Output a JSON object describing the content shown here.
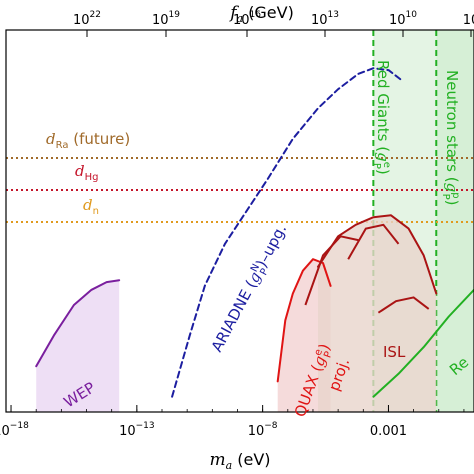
{
  "chart_data": {
    "type": "line",
    "x_axis": {
      "label_var": "m",
      "label_sub": "a",
      "label_unit": "(eV)",
      "scale": "log",
      "range_log10": [
        -18.2,
        0.4
      ],
      "ticks": [
        {
          "log10": -18,
          "base": "10",
          "exp": "−18"
        },
        {
          "log10": -13,
          "base": "10",
          "exp": "−13"
        },
        {
          "log10": -8,
          "base": "10",
          "exp": "−8"
        },
        {
          "log10": -3,
          "text": "0.001"
        }
      ]
    },
    "top_axis": {
      "label_var": "f",
      "label_sub": "a",
      "label_unit": "(GeV)",
      "scale": "log",
      "ticks": [
        {
          "base": "10",
          "exp": "22"
        },
        {
          "base": "10",
          "exp": "19"
        },
        {
          "base": "10",
          "exp": "16"
        },
        {
          "base": "10",
          "exp": "13"
        },
        {
          "base": "10",
          "exp": "10"
        },
        {
          "base": "10",
          "exp": ""
        }
      ]
    },
    "hlines": [
      {
        "label_main": "d",
        "label_sub": "Ra",
        "label_suffix": " (future)",
        "color": "#a06a2a"
      },
      {
        "label_main": "d",
        "label_sub": "Hg",
        "label_suffix": "",
        "color": "#c4142a"
      },
      {
        "label_main": "d",
        "label_sub": "n",
        "label_suffix": "",
        "color": "#e09a1e"
      }
    ],
    "bands": [
      {
        "name": "Red Giants",
        "coupling_main": "g",
        "coupling_sub": "P",
        "coupling_sup": "e",
        "color": "#22b022",
        "x_log10": -3.6
      },
      {
        "name": "Neutron stars",
        "coupling_main": "g",
        "coupling_sub": "P",
        "coupling_sup": "p",
        "color": "#22b022",
        "x_log10": -1.1
      }
    ],
    "series": [
      {
        "name": "WEP",
        "color": "#7a1f9e",
        "points_log10": [
          [
            -17.0,
            -8.8
          ],
          [
            -16.3,
            -8.0
          ],
          [
            -15.5,
            -7.2
          ],
          [
            -14.8,
            -6.8
          ],
          [
            -14.2,
            -6.6
          ],
          [
            -13.7,
            -6.55
          ]
        ]
      },
      {
        "name": "ARIADNE",
        "coupling_main": "g",
        "coupling_sub": "P",
        "coupling_sup": "N",
        "suffix": "–upg.",
        "color": "#1c1ea0",
        "dashed": true,
        "points_log10": [
          [
            -11.6,
            -9.6
          ],
          [
            -10.9,
            -8.0
          ],
          [
            -10.3,
            -6.7
          ],
          [
            -9.5,
            -5.6
          ],
          [
            -8.7,
            -4.8
          ],
          [
            -7.8,
            -3.9
          ],
          [
            -6.8,
            -2.85
          ],
          [
            -5.8,
            -2.05
          ],
          [
            -5.0,
            -1.55
          ],
          [
            -4.2,
            -1.15
          ],
          [
            -3.6,
            -1.0
          ],
          [
            -3.0,
            -1.05
          ],
          [
            -2.5,
            -1.3
          ]
        ]
      },
      {
        "name": "QUAX",
        "coupling_main": "g",
        "coupling_sub": "P",
        "coupling_sup": "e",
        "suffix": "proj.",
        "color": "#e01414",
        "points_log10": [
          [
            -7.4,
            -9.2
          ],
          [
            -7.1,
            -7.6
          ],
          [
            -6.8,
            -6.9
          ],
          [
            -6.4,
            -6.3
          ],
          [
            -6.0,
            -6.0
          ],
          [
            -5.6,
            -6.1
          ],
          [
            -5.3,
            -6.7
          ]
        ]
      },
      {
        "name": "ISL",
        "color": "#aa1414",
        "points_log10": [
          [
            -5.8,
            -6.2
          ],
          [
            -5.0,
            -5.4
          ],
          [
            -4.3,
            -5.1
          ],
          [
            -3.6,
            -4.9
          ],
          [
            -2.9,
            -4.85
          ],
          [
            -2.2,
            -5.2
          ],
          [
            -1.6,
            -5.9
          ],
          [
            -1.1,
            -6.9
          ]
        ]
      },
      {
        "name": "Re",
        "color": "#22b022",
        "points_log10": [
          [
            -3.6,
            -9.6
          ],
          [
            -2.6,
            -9.0
          ],
          [
            -1.6,
            -8.3
          ],
          [
            -0.6,
            -7.5
          ],
          [
            0.4,
            -6.8
          ]
        ]
      }
    ]
  }
}
